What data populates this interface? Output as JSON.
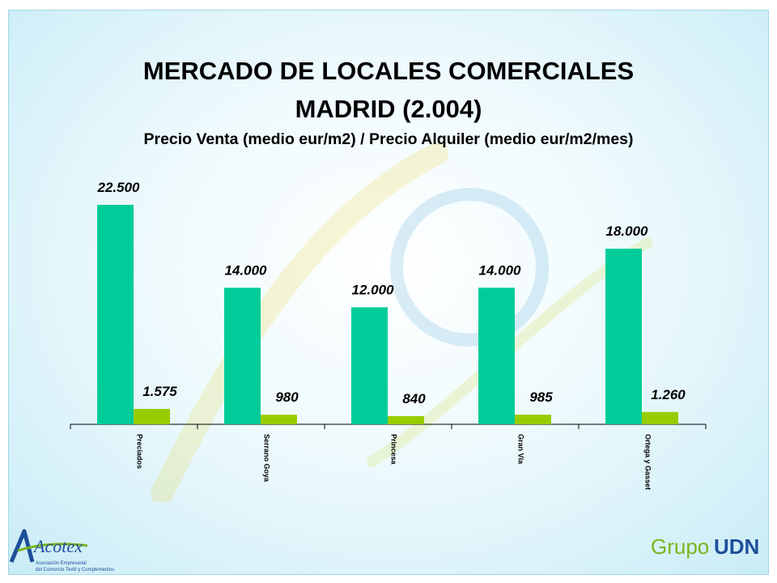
{
  "title_line1": "MERCADO DE LOCALES COMERCIALES",
  "title_line2": "MADRID (2.004)",
  "subtitle": "Precio Venta (medio eur/m2) / Precio Alquiler (medio eur/m2/mes)",
  "chart_data": {
    "type": "bar",
    "categories": [
      "Preciados",
      "Serrano Goya",
      "Princesa",
      "Gran Vía",
      "Ortega y Gasset"
    ],
    "series": [
      {
        "values": [
          22500,
          14000,
          12000,
          14000,
          18000
        ],
        "labels": [
          "22.500",
          "14.000",
          "12.000",
          "14.000",
          "18.000"
        ],
        "color": "#00cc99"
      },
      {
        "values": [
          1575,
          980,
          840,
          985,
          1260
        ],
        "labels": [
          "1.575",
          "980",
          "840",
          "985",
          "1.260"
        ],
        "color": "#99cc00"
      }
    ],
    "ylim": [
      0,
      22500
    ],
    "xlabel": "",
    "ylabel": "",
    "grid": false,
    "legend": "none"
  },
  "logos": {
    "left": {
      "name": "Acotex",
      "tagline1": "Asociación Empresarial",
      "tagline2": "del Comercio Textil y Complementos"
    },
    "right": {
      "prefix": "Grupo",
      "suffix": "UDN"
    }
  },
  "colors": {
    "slide_bg": "#c9ecf6",
    "bar_primary": "#00cc99",
    "bar_secondary": "#99cc00",
    "logo_blue": "#1f4e9a",
    "logo_green": "#7ab51d"
  }
}
